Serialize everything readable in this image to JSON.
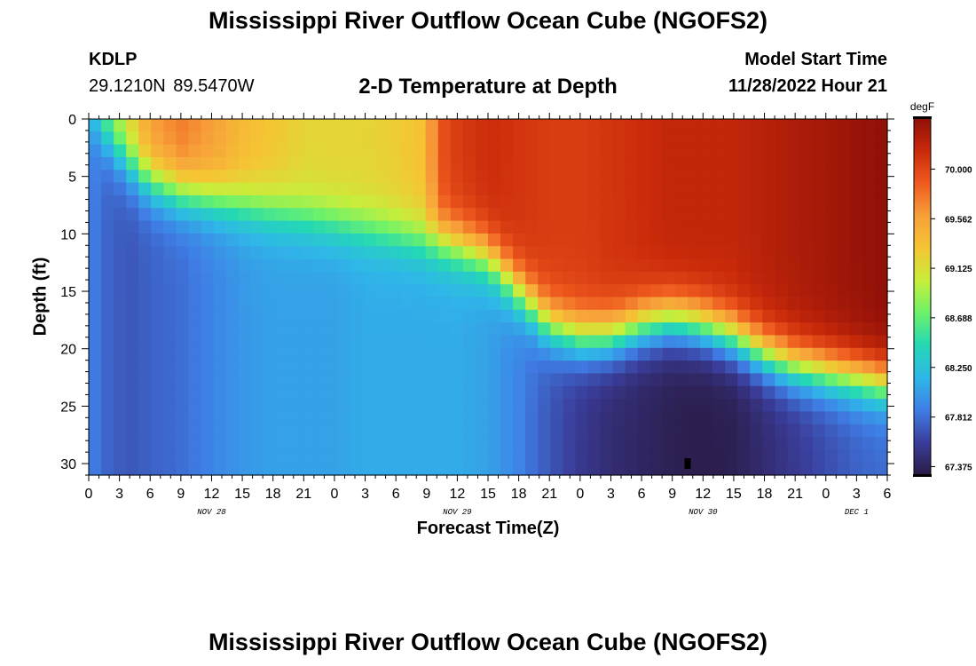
{
  "header": {
    "title": "Mississippi River Outflow Ocean Cube (NGOFS2)",
    "footer_title": "Mississippi River Outflow Ocean Cube (NGOFS2)",
    "station_id": "KDLP",
    "station_coords": "29.1210N  89.5470W",
    "subtitle": "2-D Temperature at Depth",
    "model_start_label": "Model Start Time",
    "model_start_value": "11/28/2022 Hour 21"
  },
  "chart_data": {
    "type": "heatmap",
    "title": "2-D Temperature at Depth",
    "xlabel": "Forecast Time(Z)",
    "ylabel": "Depth (ft)",
    "xlim": [
      0,
      78
    ],
    "ylim": [
      31,
      0
    ],
    "x_tick_labels": [
      "0",
      "3",
      "6",
      "9",
      "12",
      "15",
      "18",
      "21",
      "0",
      "3",
      "6",
      "9",
      "12",
      "15",
      "18",
      "21",
      "0",
      "3",
      "6",
      "9",
      "12",
      "15",
      "18",
      "21",
      "0",
      "3",
      "6"
    ],
    "date_labels": [
      {
        "text": "NOV 28",
        "hour": 12
      },
      {
        "text": "NOV 29",
        "hour": 36
      },
      {
        "text": "NOV 30",
        "hour": 60
      },
      {
        "text": "DEC 1",
        "hour": 75
      }
    ],
    "y_ticks": [
      0,
      5,
      10,
      15,
      20,
      25,
      30
    ],
    "colorbar": {
      "unit": "degF",
      "range": [
        67.3,
        70.45
      ],
      "tick_labels": [
        "70.000",
        "69.562",
        "69.125",
        "68.688",
        "68.250",
        "67.812",
        "67.375"
      ],
      "tick_values": [
        70.0,
        69.562,
        69.125,
        68.688,
        68.25,
        67.812,
        67.375
      ],
      "colormap": [
        "#2a1a44",
        "#3a3d9a",
        "#3f7ee6",
        "#2fb7e8",
        "#24d8b5",
        "#6df26a",
        "#c8ee3a",
        "#f5c534",
        "#f7a03a",
        "#ef5a1e",
        "#c92a0a",
        "#8f0f08"
      ]
    },
    "field": {
      "x_hours": [
        0,
        2,
        4,
        6,
        9,
        12,
        15,
        18,
        21,
        24,
        27,
        30,
        33,
        34,
        36,
        39,
        42,
        45,
        48,
        51,
        54,
        57,
        60,
        63,
        66,
        69,
        72,
        75,
        78
      ],
      "thermocline_depth_ft": [
        0,
        2,
        4,
        5.5,
        6.5,
        7,
        7.5,
        8,
        8.5,
        9,
        9.5,
        10,
        10.5,
        10.5,
        11,
        12,
        15,
        18,
        19,
        19,
        18,
        17.5,
        18,
        19,
        20.5,
        21.5,
        22,
        22.5,
        23
      ],
      "surface_temp_degF": [
        68.3,
        68.9,
        69.2,
        69.6,
        69.75,
        69.6,
        69.4,
        69.3,
        69.2,
        69.2,
        69.2,
        69.25,
        69.35,
        69.9,
        70.05,
        70.15,
        70.1,
        70.05,
        70.05,
        70.1,
        70.15,
        70.2,
        70.2,
        70.2,
        70.25,
        70.3,
        70.35,
        70.4,
        70.45
      ],
      "deep_temp_degF": [
        67.9,
        67.75,
        67.7,
        67.75,
        67.8,
        67.9,
        68.0,
        68.05,
        68.05,
        68.05,
        68.1,
        68.1,
        68.1,
        68.1,
        68.1,
        68.05,
        67.9,
        67.7,
        67.55,
        67.45,
        67.4,
        67.35,
        67.33,
        67.35,
        67.45,
        67.55,
        67.65,
        67.75,
        67.8
      ]
    },
    "marker": {
      "hour": 58.5,
      "depth_ft": 30
    }
  }
}
